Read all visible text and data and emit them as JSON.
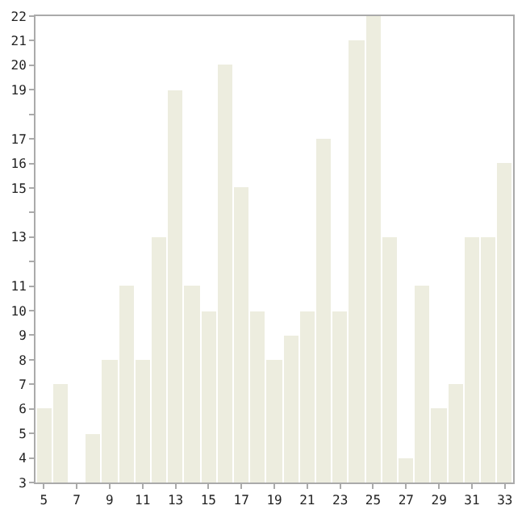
{
  "chart_data": {
    "type": "bar",
    "x": [
      5,
      6,
      7,
      8,
      9,
      10,
      11,
      12,
      13,
      14,
      15,
      16,
      17,
      18,
      19,
      20,
      21,
      22,
      23,
      24,
      25,
      26,
      27,
      28,
      29,
      30,
      31,
      32,
      33
    ],
    "values": [
      6,
      7,
      3,
      5,
      8,
      11,
      8,
      13,
      19,
      11,
      10,
      20,
      15,
      10,
      8,
      9,
      10,
      17,
      10,
      21,
      22,
      13,
      4,
      11,
      6,
      7,
      13,
      13,
      16
    ],
    "color": "#ededdf",
    "xlim": [
      4.5,
      33.5
    ],
    "xticks": [
      5,
      7,
      9,
      11,
      13,
      15,
      17,
      19,
      21,
      23,
      25,
      27,
      29,
      31,
      33
    ],
    "ylim": [
      3,
      22
    ],
    "yticks": [
      3,
      4,
      5,
      6,
      7,
      8,
      9,
      10,
      11,
      {
        "value": 12,
        "label": null
      },
      13,
      {
        "value": 14,
        "label": null
      },
      15,
      16,
      17,
      {
        "value": 18,
        "label": null
      },
      19,
      20,
      21,
      22
    ]
  }
}
